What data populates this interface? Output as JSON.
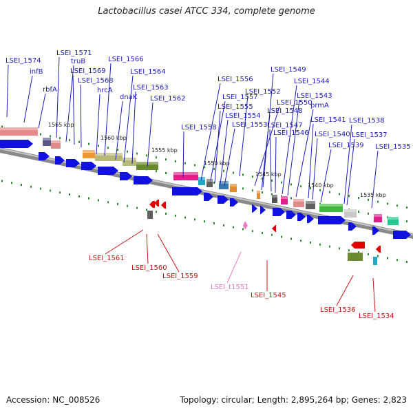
{
  "title": "Lactobacillus casei ATCC 334, complete genome",
  "footer": {
    "accession": "Accession: NC_008526",
    "summary": "Topology: circular; Length: 2,895,264 bp; Genes: 2,823"
  },
  "colors": {
    "forward_label": "#1a1ab8",
    "reverse_label": "#d01010",
    "rna_label": "#f07ac0",
    "forward_gene": "#1010e0",
    "reverse_gene": "#e00000",
    "backbone": "#8a8a8a",
    "tick": "#2a8a2a"
  },
  "scale_labels": [
    "1565 kbp",
    "1560 kbp",
    "1555 kbp",
    "1550 kbp",
    "1545 kbp",
    "1540 kbp",
    "1535 kbp"
  ],
  "forward_labels": [
    "LSEI_1574",
    "infB",
    "rbfA",
    "LSEI_1571",
    "truB",
    "LSEI_1569",
    "LSEI_1568",
    "hrcA",
    "LSEI_1566",
    "dnaK",
    "LSEI_1564",
    "LSEI_1563",
    "LSEI_1562",
    "LSEI_1558",
    "LSEI_1557",
    "LSEI_1556",
    "LSEI_1555",
    "LSEI_1554",
    "LSEI_1553",
    "LSEI_1552",
    "LSEI_1550",
    "LSEI_1549",
    "LSEI_1548",
    "LSEI_1547",
    "LSEI_1546",
    "LSEI_1544",
    "LSEI_1543",
    "prmA",
    "LSEI_1541",
    "LSEI_1540",
    "LSEI_1539",
    "LSEI_1538",
    "LSEI_1537",
    "LSEI_1535"
  ],
  "reverse_labels": [
    "LSEI_1561",
    "LSEI_1560",
    "LSEI_1559",
    "LSEI_t1551",
    "LSEI_1545",
    "LSEI_1536",
    "LSEI_1534"
  ]
}
